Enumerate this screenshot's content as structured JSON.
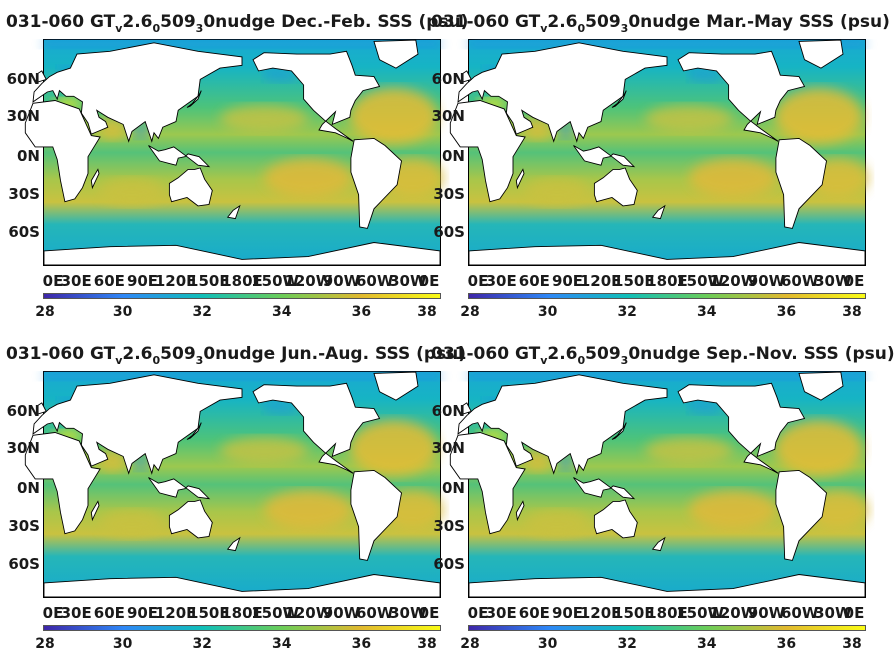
{
  "panels": [
    {
      "title": {
        "prefix": "031-060 GT",
        "sub1": "v",
        "mid1": "2.6",
        "sub2": "0",
        "mid2": "509",
        "sub3": "3",
        "rest": "0nudge Dec.-Feb. SSS (psu)"
      }
    },
    {
      "title": {
        "prefix": "031-060 GT",
        "sub1": "v",
        "mid1": "2.6",
        "sub2": "0",
        "mid2": "509",
        "sub3": "3",
        "rest": "0nudge Mar.-May SSS (psu)"
      }
    },
    {
      "title": {
        "prefix": "031-060 GT",
        "sub1": "v",
        "mid1": "2.6",
        "sub2": "0",
        "mid2": "509",
        "sub3": "3",
        "rest": "0nudge Jun.-Aug. SSS (psu)"
      }
    },
    {
      "title": {
        "prefix": "031-060 GT",
        "sub1": "v",
        "mid1": "2.6",
        "sub2": "0",
        "mid2": "509",
        "sub3": "3",
        "rest": "0nudge Sep.-Nov. SSS (psu)"
      }
    }
  ],
  "axes": {
    "lat_ticks": [
      "60N",
      "30N",
      "0N",
      "30S",
      "60S"
    ],
    "lon_ticks": [
      "0E",
      "30E",
      "60E",
      "90E",
      "120E",
      "150E",
      "180E",
      "150W",
      "120W",
      "90W",
      "60W",
      "30W",
      "0E"
    ]
  },
  "colorbar": {
    "ticks": [
      "28",
      "30",
      "32",
      "34",
      "36",
      "38"
    ],
    "colors": [
      "#3e26a8",
      "#2e87f7",
      "#10bfb9",
      "#6bcd59",
      "#e1b92f",
      "#f9fb15"
    ]
  },
  "chart_data": [
    {
      "type": "heatmap",
      "title": "031-060 GTv2.605093 0nudge Dec.-Feb. SSS (psu)",
      "variable": "SSS (psu)",
      "season": "Dec.-Feb.",
      "x_range": [
        0,
        360
      ],
      "y_range": [
        -80,
        80
      ],
      "color_range": [
        28,
        38
      ],
      "colorbar_ticks": [
        28,
        30,
        32,
        34,
        36,
        38
      ]
    },
    {
      "type": "heatmap",
      "title": "031-060 GTv2.605093 0nudge Mar.-May SSS (psu)",
      "variable": "SSS (psu)",
      "season": "Mar.-May",
      "x_range": [
        0,
        360
      ],
      "y_range": [
        -80,
        80
      ],
      "color_range": [
        28,
        38
      ],
      "colorbar_ticks": [
        28,
        30,
        32,
        34,
        36,
        38
      ]
    },
    {
      "type": "heatmap",
      "title": "031-060 GTv2.605093 0nudge Jun.-Aug. SSS (psu)",
      "variable": "SSS (psu)",
      "season": "Jun.-Aug.",
      "x_range": [
        0,
        360
      ],
      "y_range": [
        -80,
        80
      ],
      "color_range": [
        28,
        38
      ],
      "colorbar_ticks": [
        28,
        30,
        32,
        34,
        36,
        38
      ]
    },
    {
      "type": "heatmap",
      "title": "031-060 GTv2.605093 0nudge Sep.-Nov. SSS (psu)",
      "variable": "SSS (psu)",
      "season": "Sep.-Nov.",
      "x_range": [
        0,
        360
      ],
      "y_range": [
        -80,
        80
      ],
      "color_range": [
        28,
        38
      ],
      "colorbar_ticks": [
        28,
        30,
        32,
        34,
        36,
        38
      ]
    }
  ]
}
